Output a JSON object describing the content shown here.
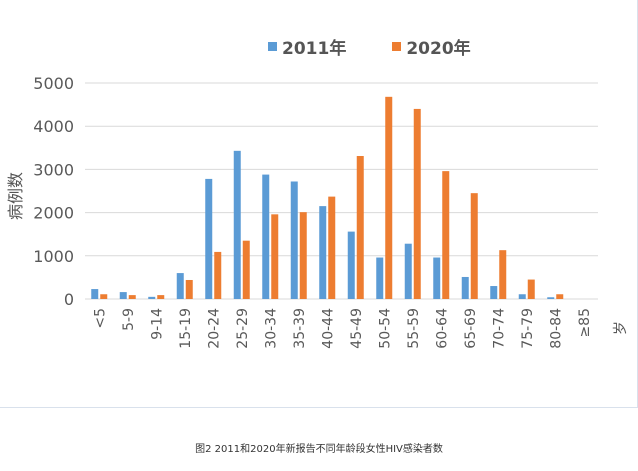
{
  "caption": "图2 2011和2020年新报告不同年龄段女性HIV感染者数",
  "colors": {
    "s2011": "#5b9bd5",
    "s2020": "#ed7d31",
    "grid": "#d9d9d9",
    "text": "#595959"
  },
  "chart_data": {
    "type": "bar",
    "title": "",
    "xlabel": "",
    "ylabel": "病例数",
    "x_unit": "岁",
    "ylim": [
      0,
      5000
    ],
    "yticks": [
      0,
      1000,
      2000,
      3000,
      4000,
      5000
    ],
    "grid": true,
    "legend_position": "top",
    "categories": [
      "<5",
      "5-9",
      "9-14",
      "15-19",
      "20-24",
      "25-29",
      "30-34",
      "35-39",
      "40-44",
      "45-49",
      "50-54",
      "55-59",
      "60-64",
      "65-69",
      "70-74",
      "75-79",
      "80-84",
      "≥85"
    ],
    "series": [
      {
        "name": "2011年",
        "values": [
          230,
          160,
          50,
          600,
          2780,
          3430,
          2880,
          2720,
          2150,
          1560,
          960,
          1280,
          960,
          510,
          300,
          110,
          40,
          0
        ]
      },
      {
        "name": "2020年",
        "values": [
          110,
          90,
          90,
          440,
          1090,
          1350,
          1960,
          2010,
          2370,
          3310,
          4680,
          4400,
          2960,
          2450,
          1130,
          450,
          110,
          0
        ]
      }
    ]
  }
}
